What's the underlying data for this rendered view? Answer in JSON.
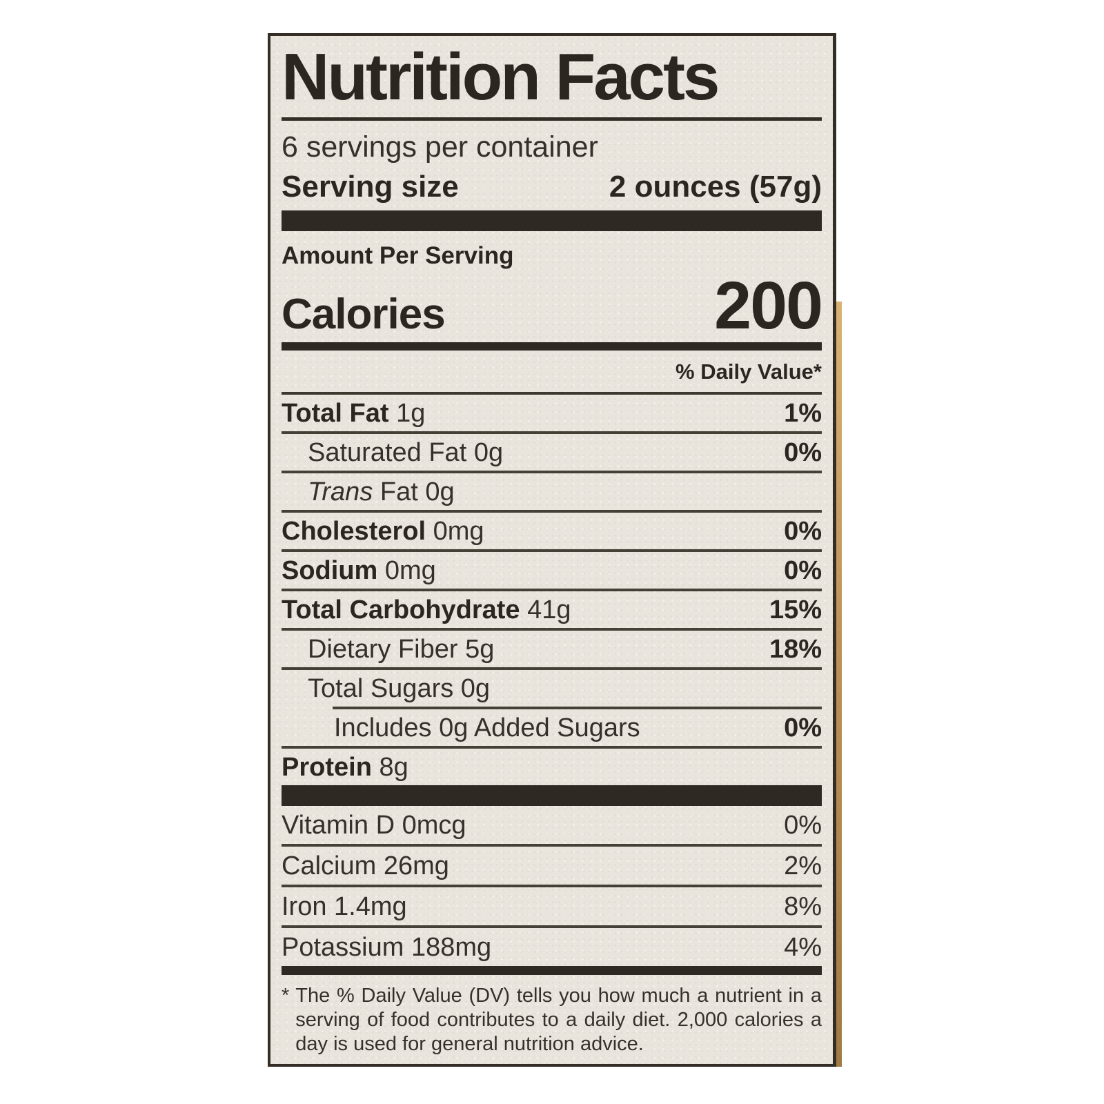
{
  "colors": {
    "paper": "#e9e5dd",
    "ink": "#2e2922",
    "package_edge": "#bd9258"
  },
  "label": {
    "title": "Nutrition Facts",
    "servings_per_container": "6 servings per container",
    "serving_size": {
      "label": "Serving size",
      "value": "2 ounces (57g)"
    },
    "amount_per_serving": "Amount Per Serving",
    "calories": {
      "label": "Calories",
      "value": "200"
    },
    "daily_value_header": "% Daily Value*",
    "rows": [
      {
        "name": "Total Fat",
        "amount": "1g",
        "dv": "1%"
      },
      {
        "name": "Saturated Fat",
        "amount": "0g",
        "dv": "0%"
      },
      {
        "name_italic": "Trans",
        "name_rest": "Fat",
        "amount": "0g",
        "dv": ""
      },
      {
        "name": "Cholesterol",
        "amount": "0mg",
        "dv": "0%"
      },
      {
        "name": "Sodium",
        "amount": "0mg",
        "dv": "0%"
      },
      {
        "name": "Total Carbohydrate",
        "amount": "41g",
        "dv": "15%"
      },
      {
        "name": "Dietary Fiber",
        "amount": "5g",
        "dv": "18%"
      },
      {
        "name": "Total Sugars",
        "amount": "0g",
        "dv": ""
      },
      {
        "name": "Includes 0g Added Sugars",
        "amount": "",
        "dv": "0%"
      },
      {
        "name": "Protein",
        "amount": "8g",
        "dv": ""
      }
    ],
    "vitamins": [
      {
        "name": "Vitamin D",
        "amount": "0mcg",
        "dv": "0%"
      },
      {
        "name": "Calcium",
        "amount": "26mg",
        "dv": "2%"
      },
      {
        "name": "Iron",
        "amount": "1.4mg",
        "dv": "8%"
      },
      {
        "name": "Potassium",
        "amount": "188mg",
        "dv": "4%"
      }
    ],
    "footnote_marker": "*",
    "footnote": "The % Daily Value (DV) tells you how much a nutrient in a serving of food contributes to a daily diet. 2,000 calories a day is used for general nutrition advice."
  }
}
